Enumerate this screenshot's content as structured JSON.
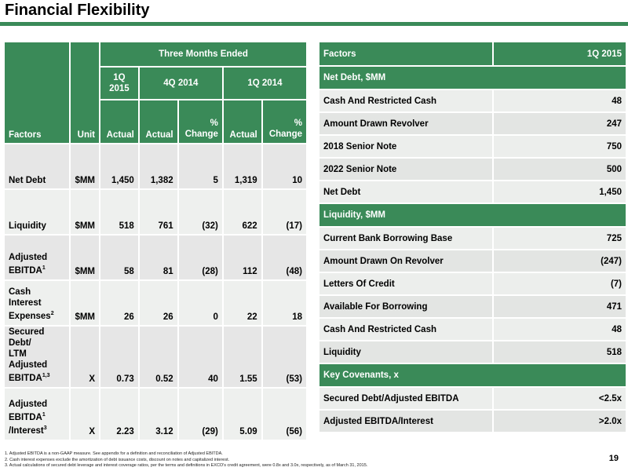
{
  "title": "Financial Flexibility",
  "left_table": {
    "group_header": "Three Months Ended",
    "periods": [
      "1Q 2015",
      "4Q 2014",
      "1Q 2014"
    ],
    "col_headers": {
      "factors": "Factors",
      "unit": "Unit",
      "actual": "Actual",
      "pct_change_line1": "%",
      "pct_change_line2": "Change"
    },
    "rows": [
      {
        "factor": "Net Debt",
        "sup": "",
        "unit": "$MM",
        "q1_2015": "1,450",
        "q4_2014": "1,382",
        "q4_change": "5",
        "q1_2014": "1,319",
        "q1_change": "10"
      },
      {
        "factor": "Liquidity",
        "sup": "",
        "unit": "$MM",
        "q1_2015": "518",
        "q4_2014": "761",
        "q4_change": "(32)",
        "q1_2014": "622",
        "q1_change": "(17)"
      },
      {
        "factor_line1": "Adjusted",
        "factor_line2": "EBITDA",
        "sup": "1",
        "unit": "$MM",
        "q1_2015": "58",
        "q4_2014": "81",
        "q4_change": "(28)",
        "q1_2014": "112",
        "q1_change": "(48)"
      },
      {
        "factor_line1": "Cash Interest",
        "factor_line2": "Expenses",
        "sup": "2",
        "unit": "$MM",
        "q1_2015": "26",
        "q4_2014": "26",
        "q4_change": "0",
        "q1_2014": "22",
        "q1_change": "18"
      },
      {
        "factor_line1": "Secured",
        "factor_line2": "Debt/",
        "factor_line3": "LTM Adjusted",
        "factor_line4": "EBITDA",
        "sup": "1,3",
        "unit": "X",
        "q1_2015": "0.73",
        "q4_2014": "0.52",
        "q4_change": "40",
        "q1_2014": "1.55",
        "q1_change": "(53)"
      },
      {
        "factor_line1": "Adjusted",
        "factor_line2": "EBITDA",
        "sup_a": "1",
        "factor_line3": "/Interest",
        "sup": "3",
        "unit": "X",
        "q1_2015": "2.23",
        "q4_2014": "3.12",
        "q4_change": "(29)",
        "q1_2014": "5.09",
        "q1_change": "(56)"
      }
    ]
  },
  "right_table": {
    "header_factor": "Factors",
    "header_period": "1Q 2015",
    "sections": [
      {
        "title": "Net Debt, $MM",
        "items": [
          {
            "label": "Cash And Restricted Cash",
            "value": "48"
          },
          {
            "label": "Amount Drawn Revolver",
            "value": "247"
          },
          {
            "label": "2018 Senior Note",
            "value": "750"
          },
          {
            "label": "2022 Senior Note",
            "value": "500"
          },
          {
            "label": "Net Debt",
            "value": "1,450"
          }
        ]
      },
      {
        "title": "Liquidity, $MM",
        "items": [
          {
            "label": "Current Bank Borrowing Base",
            "value": "725"
          },
          {
            "label": "Amount Drawn On Revolver",
            "value": "(247)"
          },
          {
            "label": "Letters Of Credit",
            "value": "(7)"
          },
          {
            "label": "Available For Borrowing",
            "value": "471"
          },
          {
            "label": "Cash And Restricted Cash",
            "value": "48"
          },
          {
            "label": "Liquidity",
            "value": "518"
          }
        ]
      },
      {
        "title": "Key Covenants, x",
        "items": [
          {
            "label": "Secured Debt/Adjusted EBITDA",
            "value": "<2.5x"
          },
          {
            "label": "Adjusted EBITDA/Interest",
            "value": ">2.0x"
          }
        ]
      }
    ]
  },
  "footnotes": [
    "1.  Adjusted EBITDA is a non-GAAP measure. See appendix for a definition and reconciliation of Adjusted EBITDA.",
    "2.  Cash interest expenses exclude the amortization of debt issuance costs, discount on notes and capitalized interest.",
    "3.  Actual calculations of secured debt leverage and interest coverage ratios, per the terms and definitions in EXCO's credit agreement, were 0.8x and 3.0x, respectively, as of March 31, 2015."
  ],
  "page_number": "19",
  "colors": {
    "brand_green": "#3a8a58",
    "row_gray": "#e6e6e6"
  }
}
